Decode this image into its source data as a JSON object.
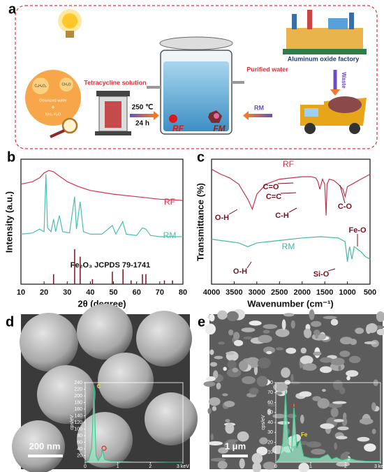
{
  "figure": {
    "panel_a": {
      "label": "a",
      "reagents": [
        "C₆H₆O₂",
        "CH₂O",
        "Deionized water",
        "+",
        "NH₃·H₂O"
      ],
      "tetracycline": "Tetracycline solution",
      "temperature": "250 ℃",
      "time": "24 h",
      "rf": "RF",
      "fm": "FM",
      "rm": "RM",
      "purified": "Purified water",
      "waste": "Waste",
      "factory": "Aluminum oxide factory"
    },
    "panel_b": {
      "type": "line",
      "label": "b",
      "xlabel": "2θ (degree)",
      "ylabel": "Intensity (a.u.)",
      "xlim": [
        10,
        80
      ],
      "ylim": [
        0,
        100
      ],
      "xticks": [
        10,
        20,
        30,
        40,
        50,
        60,
        70,
        80
      ],
      "series": [
        {
          "name": "RF",
          "color": "#d6334a",
          "x": [
            10,
            15,
            18,
            20,
            22,
            24,
            27,
            30,
            35,
            40,
            50,
            60,
            70,
            80
          ],
          "values": [
            80,
            82,
            85,
            89,
            91,
            90,
            86,
            82,
            78,
            75,
            72,
            70,
            68,
            67
          ]
        },
        {
          "name": "RM",
          "color": "#4bbfb0",
          "x": [
            10,
            15,
            18,
            20,
            20.8,
            21.5,
            23,
            24.1,
            25,
            26.6,
            28,
            31,
            33.2,
            34,
            35.6,
            37,
            40,
            45,
            49.5,
            51,
            54,
            55.5,
            60,
            62.5,
            64,
            66,
            70,
            75,
            80
          ],
          "values": [
            40,
            41,
            44,
            42,
            88,
            45,
            42,
            52,
            42,
            55,
            42,
            41,
            70,
            44,
            66,
            42,
            40,
            40,
            47,
            40,
            50,
            40,
            39,
            45,
            44,
            39,
            38,
            38,
            38
          ]
        }
      ],
      "reference": {
        "name": "Fe₂O₃ JCPDS  79-1741",
        "color": "#7b1020",
        "x": [
          24.1,
          33.2,
          35.6,
          40.9,
          49.5,
          54.1,
          57.6,
          62.5,
          64.0,
          72.0,
          75.5
        ],
        "values": [
          8,
          28,
          22,
          4,
          10,
          12,
          3,
          8,
          8,
          3,
          3
        ]
      }
    },
    "panel_c": {
      "type": "line",
      "label": "c",
      "xlabel": "Wavenumber (cm⁻¹)",
      "ylabel": "Transmittance (%)",
      "xlim": [
        4000,
        500
      ],
      "ylim": [
        0,
        100
      ],
      "xticks": [
        4000,
        3500,
        3000,
        2500,
        2000,
        1500,
        1000,
        500
      ],
      "series": [
        {
          "name": "RF",
          "color": "#c8324a",
          "x": [
            4000,
            3800,
            3600,
            3400,
            3200,
            3100,
            3000,
            2800,
            2500,
            2000,
            1800,
            1700,
            1650,
            1610,
            1550,
            1500,
            1470,
            1450,
            1400,
            1300,
            1200,
            1100,
            1050,
            1000,
            900,
            800,
            700,
            600,
            500
          ],
          "values": [
            92,
            88,
            85,
            80,
            68,
            60,
            72,
            80,
            84,
            86,
            86,
            85,
            82,
            76,
            84,
            80,
            55,
            80,
            84,
            83,
            80,
            76,
            70,
            78,
            80,
            82,
            84,
            86,
            88
          ]
        },
        {
          "name": "RM",
          "color": "#47b7a7",
          "x": [
            4000,
            3600,
            3400,
            3200,
            3000,
            2500,
            2000,
            1600,
            1200,
            1050,
            1000,
            970,
            950,
            900,
            850,
            700,
            600,
            500
          ],
          "values": [
            36,
            34,
            33,
            30,
            33,
            35,
            37,
            38,
            37,
            34,
            18,
            26,
            30,
            20,
            30,
            26,
            22,
            20
          ]
        }
      ],
      "annotations": [
        "C=O",
        "C=C",
        "C-H",
        "C-O",
        "O-H",
        "O-H",
        "Si-O",
        "Fe-O"
      ]
    },
    "panel_d": {
      "label": "d",
      "scale_bar": "200 nm",
      "inset": {
        "type": "area",
        "ylabel": "cps/eV",
        "xlim": [
          0,
          3
        ],
        "ylim": [
          0,
          240
        ],
        "xticks": [
          0,
          1,
          2,
          {
            "value": 3,
            "label": "3 keV"
          }
        ],
        "yticks": [
          20,
          40,
          60,
          80,
          100,
          120,
          140,
          160,
          180,
          200,
          220,
          240
        ],
        "series": [
          {
            "color": "#35c28a",
            "x": [
              0,
              0.1,
              0.2,
              0.27,
              0.33,
              0.4,
              0.5,
              0.52,
              0.6,
              0.8,
              1,
              1.5,
              2,
              2.5,
              3
            ],
            "values": [
              0,
              5,
              40,
              230,
              20,
              5,
              20,
              40,
              8,
              3,
              2,
              1,
              1,
              0,
              0
            ]
          }
        ],
        "peak_labels": [
          "C"
        ]
      }
    },
    "panel_e": {
      "label": "e",
      "scale_bar": "1 μm",
      "inset": {
        "type": "area",
        "ylabel": "cps/eV",
        "xlim": [
          0,
          3
        ],
        "ylim": [
          0,
          80
        ],
        "xticks": [
          0,
          1,
          2,
          {
            "value": 3,
            "label": "3 keV"
          }
        ],
        "yticks": [
          10,
          20,
          30,
          40,
          50,
          60,
          70,
          80
        ],
        "series": [
          {
            "color": "#35c28a",
            "x": [
              0,
              0.1,
              0.2,
              0.28,
              0.36,
              0.45,
              0.52,
              0.6,
              0.7,
              0.8,
              1.0,
              1.25,
              1.49,
              1.6,
              1.74,
              1.9,
              2.1,
              2.3,
              2.6,
              3
            ],
            "values": [
              0,
              4,
              20,
              72,
              18,
              10,
              60,
              14,
              22,
              6,
              4,
              4,
              8,
              3,
              5,
              2,
              4,
              2,
              1,
              1
            ]
          }
        ],
        "peak_labels": [
          "Fe"
        ]
      }
    }
  }
}
